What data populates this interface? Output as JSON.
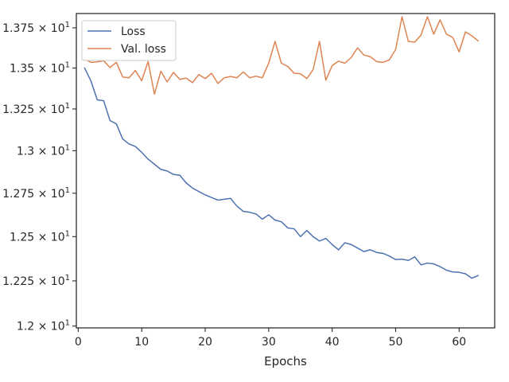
{
  "chart_data": {
    "type": "line",
    "title": "",
    "xlabel": "Epochs",
    "ylabel": "",
    "xlim": [
      -0.3,
      65.6
    ],
    "ylim": [
      11.99,
      13.84
    ],
    "y_scale": "log",
    "grid": false,
    "legend_position": "top-left",
    "x_ticks": [
      0,
      10,
      20,
      30,
      40,
      50,
      60
    ],
    "x_tick_labels": [
      "0",
      "10",
      "20",
      "30",
      "40",
      "50",
      "60"
    ],
    "y_ticks": [
      12.0,
      12.25,
      12.5,
      12.75,
      13.0,
      13.25,
      13.5,
      13.75
    ],
    "y_tick_mantissas": [
      "1.2",
      "1.225",
      "1.25",
      "1.275",
      "1.3",
      "1.325",
      "1.35",
      "1.375"
    ],
    "y_tick_base": "10",
    "y_tick_exponent": "1",
    "series": [
      {
        "name": "Loss",
        "color": "#4c72b0",
        "x": [
          1,
          2,
          3,
          4,
          5,
          6,
          7,
          8,
          9,
          10,
          11,
          12,
          13,
          14,
          15,
          16,
          17,
          18,
          19,
          20,
          21,
          22,
          23,
          24,
          25,
          26,
          27,
          28,
          29,
          30,
          31,
          32,
          33,
          34,
          35,
          36,
          37,
          38,
          39,
          40,
          41,
          42,
          43,
          44,
          45,
          46,
          47,
          48,
          49,
          50,
          51,
          52,
          53,
          54,
          55,
          56,
          57,
          58,
          59,
          60,
          61,
          62,
          63
        ],
        "values": [
          13.5,
          13.42,
          13.305,
          13.3,
          13.18,
          13.16,
          13.07,
          13.04,
          13.025,
          12.99,
          12.95,
          12.92,
          12.89,
          12.88,
          12.86,
          12.855,
          12.81,
          12.78,
          12.76,
          12.74,
          12.725,
          12.71,
          12.715,
          12.72,
          12.675,
          12.645,
          12.64,
          12.63,
          12.6,
          12.625,
          12.595,
          12.585,
          12.55,
          12.545,
          12.5,
          12.535,
          12.5,
          12.475,
          12.49,
          12.455,
          12.425,
          12.465,
          12.455,
          12.435,
          12.415,
          12.425,
          12.41,
          12.405,
          12.39,
          12.37,
          12.372,
          12.365,
          12.385,
          12.34,
          12.35,
          12.345,
          12.33,
          12.31,
          12.3,
          12.298,
          12.29,
          12.265,
          12.28
        ]
      },
      {
        "name": "Val. loss",
        "color": "#dd8452",
        "x": [
          1,
          2,
          3,
          4,
          5,
          6,
          7,
          8,
          9,
          10,
          11,
          12,
          13,
          14,
          15,
          16,
          17,
          18,
          19,
          20,
          21,
          22,
          23,
          24,
          25,
          26,
          27,
          28,
          29,
          30,
          31,
          32,
          33,
          34,
          35,
          36,
          37,
          38,
          39,
          40,
          41,
          42,
          43,
          44,
          45,
          46,
          47,
          48,
          49,
          50,
          51,
          52,
          53,
          54,
          55,
          56,
          57,
          58,
          59,
          60,
          61,
          62,
          63
        ],
        "values": [
          13.555,
          13.535,
          13.538,
          13.545,
          13.503,
          13.535,
          13.445,
          13.44,
          13.485,
          13.422,
          13.54,
          13.34,
          13.48,
          13.415,
          13.473,
          13.43,
          13.438,
          13.41,
          13.46,
          13.435,
          13.468,
          13.405,
          13.44,
          13.448,
          13.44,
          13.476,
          13.44,
          13.45,
          13.44,
          13.53,
          13.665,
          13.53,
          13.51,
          13.468,
          13.465,
          13.435,
          13.49,
          13.665,
          13.425,
          13.515,
          13.542,
          13.53,
          13.565,
          13.625,
          13.58,
          13.57,
          13.54,
          13.535,
          13.55,
          13.615,
          13.82,
          13.665,
          13.66,
          13.705,
          13.82,
          13.71,
          13.8,
          13.71,
          13.69,
          13.6,
          13.725,
          13.7,
          13.668
        ]
      }
    ]
  }
}
